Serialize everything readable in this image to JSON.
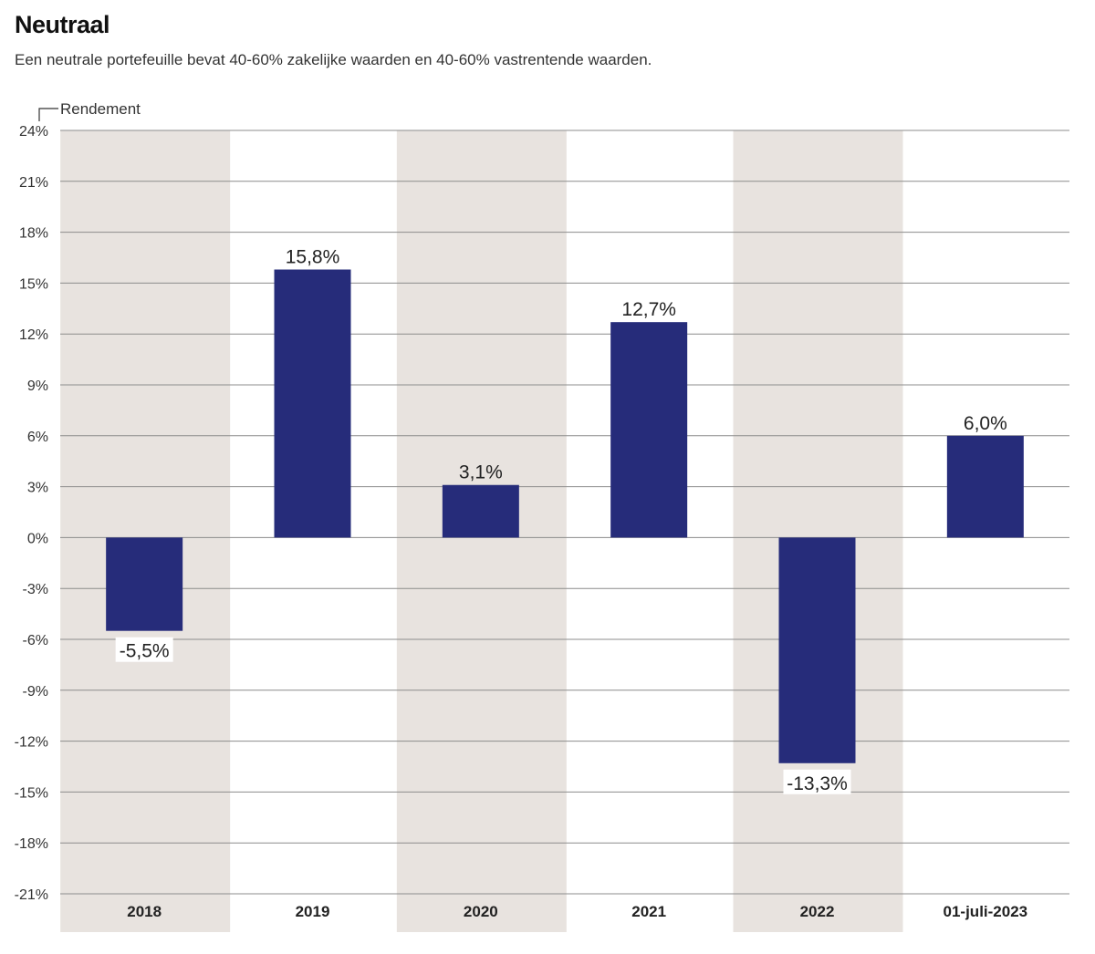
{
  "header": {
    "title": "Neutraal",
    "subtitle": "Een neutrale portefeuille bevat 40-60% zakelijke waarden en 40-60% vastrentende waarden."
  },
  "colors": {
    "bar": "#262c7a",
    "band": "#e8e3df",
    "grid": "#8c8c8c"
  },
  "chart_data": {
    "type": "bar",
    "title": "Neutraal",
    "ylabel": "Rendement",
    "xlabel": "",
    "categories": [
      "2018",
      "2019",
      "2020",
      "2021",
      "2022",
      "01-juli-2023"
    ],
    "values": [
      -5.5,
      15.8,
      3.1,
      12.7,
      -13.3,
      6.0
    ],
    "value_labels": [
      "-5,5%",
      "15,8%",
      "3,1%",
      "12,7%",
      "-13,3%",
      "6,0%"
    ],
    "ylim": [
      -21,
      24
    ],
    "yticks": [
      24,
      21,
      18,
      15,
      12,
      9,
      6,
      3,
      0,
      -3,
      -6,
      -9,
      -12,
      -15,
      -18,
      -21
    ],
    "ytick_labels": [
      "24%",
      "21%",
      "18%",
      "15%",
      "12%",
      "9%",
      "6%",
      "3%",
      "0%",
      "-3%",
      "-6%",
      "-9%",
      "-12%",
      "-15%",
      "-18%",
      "-21%"
    ],
    "grid": true,
    "alternating_bands": true
  }
}
